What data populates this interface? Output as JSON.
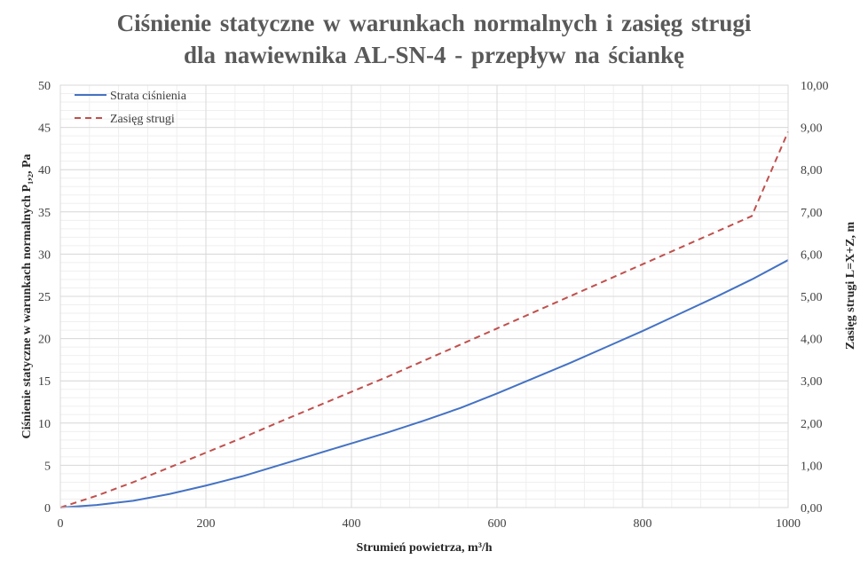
{
  "title_line1": "Ciśnienie statyczne w warunkach  normalnych  i zasięg strugi",
  "title_line2": "dla nawiewnika  AL-SN-4 - przepływ  na ściankę",
  "chart_data": {
    "type": "line",
    "title": "Ciśnienie statyczne w warunkach normalnych i zasięg strugi dla nawiewnika AL-SN-4 - przepływ na ściankę",
    "xlabel": "Strumień powietrza,  m³/h",
    "ylabel_left": "Ciśnienie statyczne w warunkach  normalnych  P₁,₂, Pa",
    "ylabel_right": "Zasięg strugi L=X+Z,  m",
    "xlim": [
      0,
      1000
    ],
    "ylim_left": [
      0,
      50
    ],
    "ylim_right": [
      0,
      10
    ],
    "x_ticks": [
      "0",
      "200",
      "400",
      "600",
      "800",
      "1000"
    ],
    "y_left_ticks": [
      "0",
      "5",
      "10",
      "15",
      "20",
      "25",
      "30",
      "35",
      "40",
      "45",
      "50"
    ],
    "y_right_ticks": [
      "0,00",
      "1,00",
      "2,00",
      "3,00",
      "4,00",
      "5,00",
      "6,00",
      "7,00",
      "8,00",
      "9,00",
      "10,00"
    ],
    "grid": true,
    "legend_position": "top-left",
    "x": [
      0,
      50,
      100,
      150,
      200,
      250,
      300,
      350,
      400,
      450,
      500,
      550,
      600,
      650,
      700,
      750,
      800,
      850,
      900,
      950,
      1000
    ],
    "series": [
      {
        "name": "Strata ciśnienia",
        "axis": "left",
        "color": "#4472C4",
        "dash": "solid",
        "values": [
          0,
          0.3,
          0.8,
          1.6,
          2.6,
          3.7,
          5.0,
          6.3,
          7.6,
          8.9,
          10.3,
          11.8,
          13.5,
          15.3,
          17.1,
          19.0,
          20.9,
          22.9,
          24.9,
          27.0,
          29.3
        ]
      },
      {
        "name": "Zasięg strugi",
        "axis": "right",
        "color": "#C0504D",
        "dash": "dashed",
        "values": [
          0,
          0.28,
          0.6,
          0.95,
          1.3,
          1.65,
          2.02,
          2.38,
          2.74,
          3.1,
          3.48,
          3.86,
          4.24,
          4.62,
          5.0,
          5.38,
          5.76,
          6.14,
          6.52,
          6.9,
          8.9
        ]
      }
    ]
  }
}
